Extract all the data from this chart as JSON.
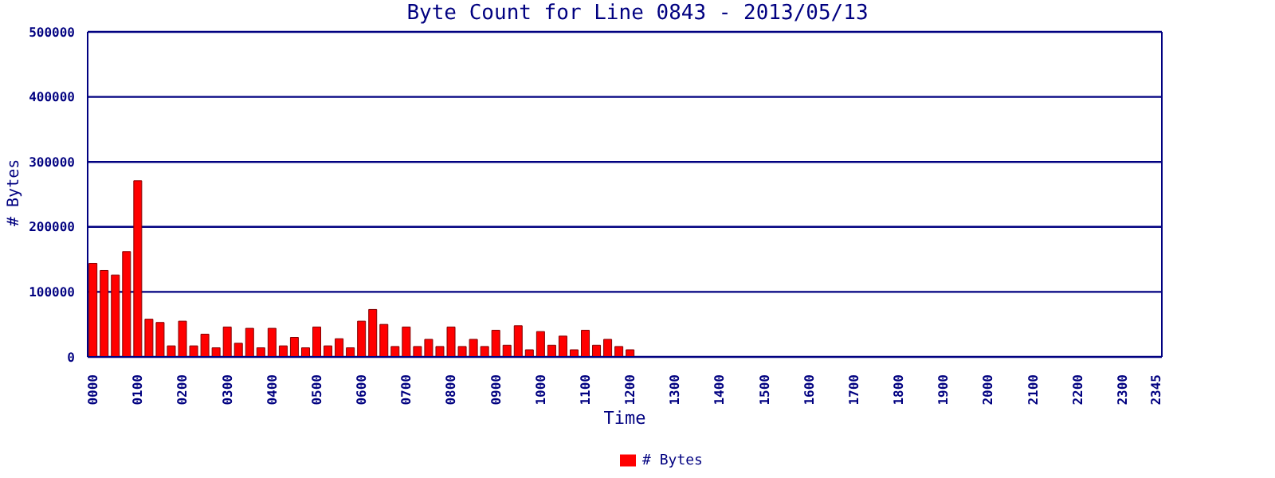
{
  "chart_data": {
    "type": "bar",
    "title": "Byte Count for Line 0843 - 2013/05/13",
    "xlabel": "Time",
    "ylabel": "# Bytes",
    "categories": [
      "0000",
      null,
      null,
      null,
      "0100",
      null,
      null,
      null,
      "0200",
      null,
      null,
      null,
      "0300",
      null,
      null,
      null,
      "0400",
      null,
      null,
      null,
      "0500",
      null,
      null,
      null,
      "0600",
      null,
      null,
      null,
      "0700",
      null,
      null,
      null,
      "0800",
      null,
      null,
      null,
      "0900",
      null,
      null,
      null,
      "1000",
      null,
      null,
      null,
      "1100",
      null,
      null,
      null,
      "1200",
      null,
      null,
      null,
      "1300",
      null,
      null,
      null,
      "1400",
      null,
      null,
      null,
      "1500",
      null,
      null,
      null,
      "1600",
      null,
      null,
      null,
      "1700",
      null,
      null,
      null,
      "1800",
      null,
      null,
      null,
      "1900",
      null,
      null,
      null,
      "2000",
      null,
      null,
      null,
      "2100",
      null,
      null,
      null,
      "2200",
      null,
      null,
      null,
      "2300",
      null,
      null,
      "2345"
    ],
    "series": [
      {
        "name": "# Bytes",
        "color": "#ff0000",
        "values": [
          144000,
          133000,
          126000,
          162000,
          271000,
          58000,
          53000,
          17000,
          55000,
          17000,
          35000,
          14000,
          46000,
          21000,
          44000,
          14000,
          44000,
          17000,
          30000,
          14000,
          46000,
          17000,
          28000,
          14000,
          55000,
          73000,
          50000,
          16000,
          46000,
          16000,
          27000,
          16000,
          46000,
          16000,
          27000,
          16000,
          41000,
          18000,
          48000,
          11000,
          39000,
          18000,
          32000,
          11000,
          41000,
          18000,
          27000,
          16000,
          11000,
          0,
          0,
          0,
          0,
          0,
          0,
          0,
          0,
          0,
          0,
          0,
          0,
          0,
          0,
          0,
          0,
          0,
          0,
          0,
          0,
          0,
          0,
          0,
          0,
          0,
          0,
          0,
          0,
          0,
          0,
          0,
          0,
          0,
          0,
          0,
          0,
          0,
          0,
          0,
          0,
          0,
          0,
          0,
          0,
          0,
          0,
          0
        ]
      }
    ],
    "ylim": [
      0,
      500000
    ],
    "yticks": [
      0,
      100000,
      200000,
      300000,
      400000,
      500000
    ],
    "grid": "y",
    "legend": "bottom"
  }
}
